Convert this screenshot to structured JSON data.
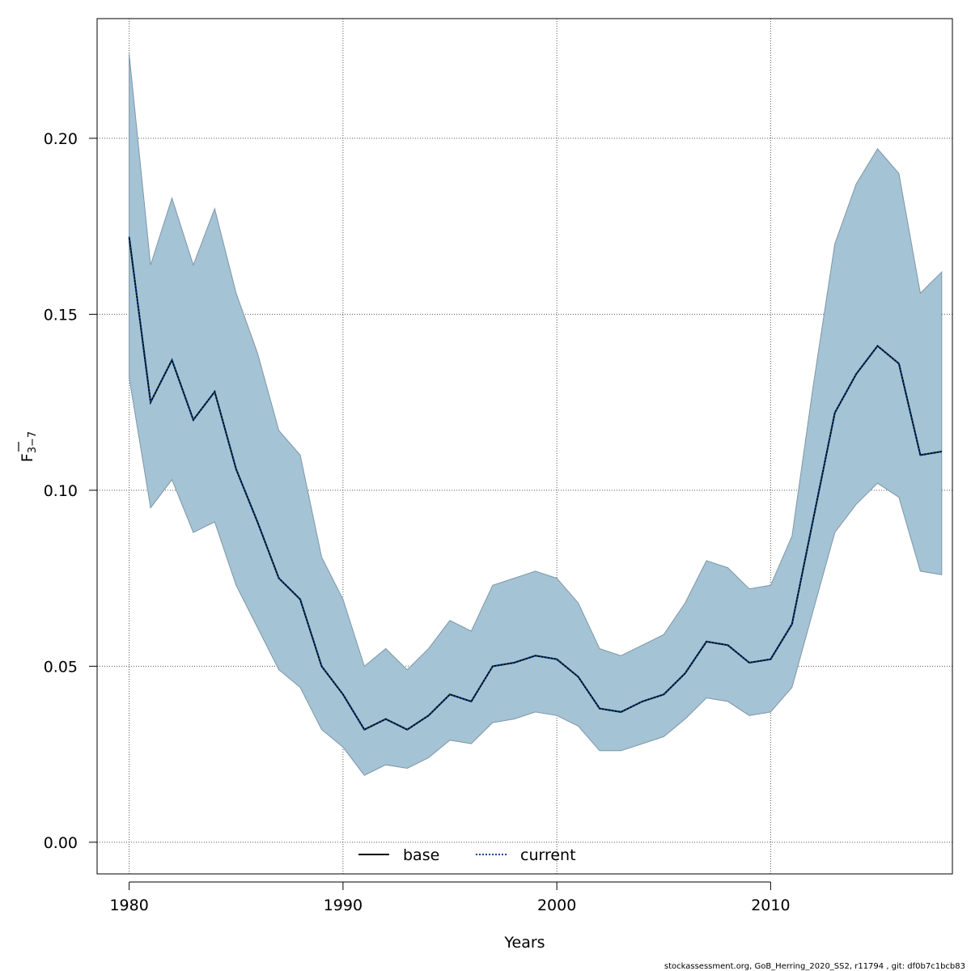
{
  "chart_data": {
    "type": "line",
    "title": "",
    "xlabel": "Years",
    "ylabel": {
      "main": "F",
      "sub": "3−7"
    },
    "xlim": [
      1978.5,
      2018.5
    ],
    "ylim": [
      -0.009,
      0.234
    ],
    "x_ticks": [
      1980,
      1990,
      2000,
      2010
    ],
    "x_tick_labels": [
      "1980",
      "1990",
      "2000",
      "2010"
    ],
    "y_ticks": [
      0.0,
      0.05,
      0.1,
      0.15,
      0.2
    ],
    "y_tick_labels": [
      "0.00",
      "0.05",
      "0.10",
      "0.15",
      "0.20"
    ],
    "grid": true,
    "legend_position": "bottom",
    "legend": [
      {
        "name": "base",
        "style": "solid",
        "color": "#000000"
      },
      {
        "name": "current",
        "style": "dotted",
        "color": "#00468b"
      }
    ],
    "band_color": "#a4c3d5",
    "band_edge_color": "#7f97a6",
    "x": [
      1980,
      1981,
      1982,
      1983,
      1984,
      1985,
      1986,
      1987,
      1988,
      1989,
      1990,
      1991,
      1992,
      1993,
      1994,
      1995,
      1996,
      1997,
      1998,
      1999,
      2000,
      2001,
      2002,
      2003,
      2004,
      2005,
      2006,
      2007,
      2008,
      2009,
      2010,
      2011,
      2012,
      2013,
      2014,
      2015,
      2016,
      2017,
      2018
    ],
    "series": [
      {
        "name": "current",
        "values": [
          0.172,
          0.125,
          0.137,
          0.12,
          0.128,
          0.106,
          0.091,
          0.075,
          0.069,
          0.05,
          0.042,
          0.032,
          0.035,
          0.032,
          0.036,
          0.042,
          0.04,
          0.05,
          0.051,
          0.053,
          0.052,
          0.047,
          0.038,
          0.037,
          0.04,
          0.042,
          0.048,
          0.057,
          0.056,
          0.051,
          0.052,
          0.062,
          0.092,
          0.122,
          0.133,
          0.141,
          0.136,
          0.11,
          0.111
        ]
      }
    ],
    "band_upper": [
      0.224,
      0.164,
      0.183,
      0.164,
      0.18,
      0.156,
      0.139,
      0.117,
      0.11,
      0.081,
      0.069,
      0.05,
      0.055,
      0.049,
      0.055,
      0.063,
      0.06,
      0.073,
      0.075,
      0.077,
      0.075,
      0.068,
      0.055,
      0.053,
      0.056,
      0.059,
      0.068,
      0.08,
      0.078,
      0.072,
      0.073,
      0.087,
      0.13,
      0.17,
      0.187,
      0.197,
      0.19,
      0.156,
      0.162
    ],
    "band_lower": [
      0.132,
      0.095,
      0.103,
      0.088,
      0.091,
      0.073,
      0.061,
      0.049,
      0.044,
      0.032,
      0.027,
      0.019,
      0.022,
      0.021,
      0.024,
      0.029,
      0.028,
      0.034,
      0.035,
      0.037,
      0.036,
      0.033,
      0.026,
      0.026,
      0.028,
      0.03,
      0.035,
      0.041,
      0.04,
      0.036,
      0.037,
      0.044,
      0.066,
      0.088,
      0.096,
      0.102,
      0.098,
      0.077,
      0.076
    ]
  },
  "footer": "stockassessment.org, GoB_Herring_2020_SS2, r11794 , git: df0b7c1bcb83"
}
